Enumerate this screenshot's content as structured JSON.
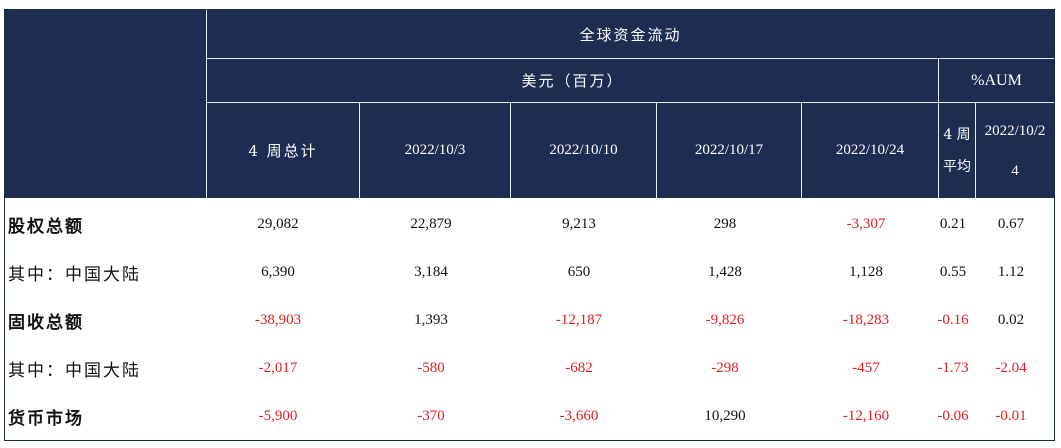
{
  "header": {
    "title": "全球资金流动",
    "usd_label": "美元（百万）",
    "aum_label": "%AUM",
    "columns": [
      "4 周总计",
      "2022/10/3",
      "2022/10/10",
      "2022/10/17",
      "2022/10/24"
    ],
    "avg_line1": "4 周",
    "avg_line2": "平均",
    "last_line1": "2022/10/2",
    "last_line2": "4"
  },
  "rows": [
    {
      "label": "股权总额",
      "bold": true,
      "values": [
        "29,082",
        "22,879",
        "9,213",
        "298",
        "-3,307",
        "0.21",
        "0.67"
      ]
    },
    {
      "label": "其中：中国大陆",
      "bold": false,
      "values": [
        "6,390",
        "3,184",
        "650",
        "1,428",
        "1,128",
        "0.55",
        "1.12"
      ]
    },
    {
      "label": "固收总额",
      "bold": true,
      "values": [
        "-38,903",
        "1,393",
        "-12,187",
        "-9,826",
        "-18,283",
        "-0.16",
        "0.02"
      ]
    },
    {
      "label": "其中：中国大陆",
      "bold": false,
      "values": [
        "-2,017",
        "-580",
        "-682",
        "-298",
        "-457",
        "-1.73",
        "-2.04"
      ]
    },
    {
      "label": "货币市场",
      "bold": true,
      "values": [
        "-5,900",
        "-370",
        "-3,660",
        "10,290",
        "-12,160",
        "-0.06",
        "-0.01"
      ]
    }
  ]
}
